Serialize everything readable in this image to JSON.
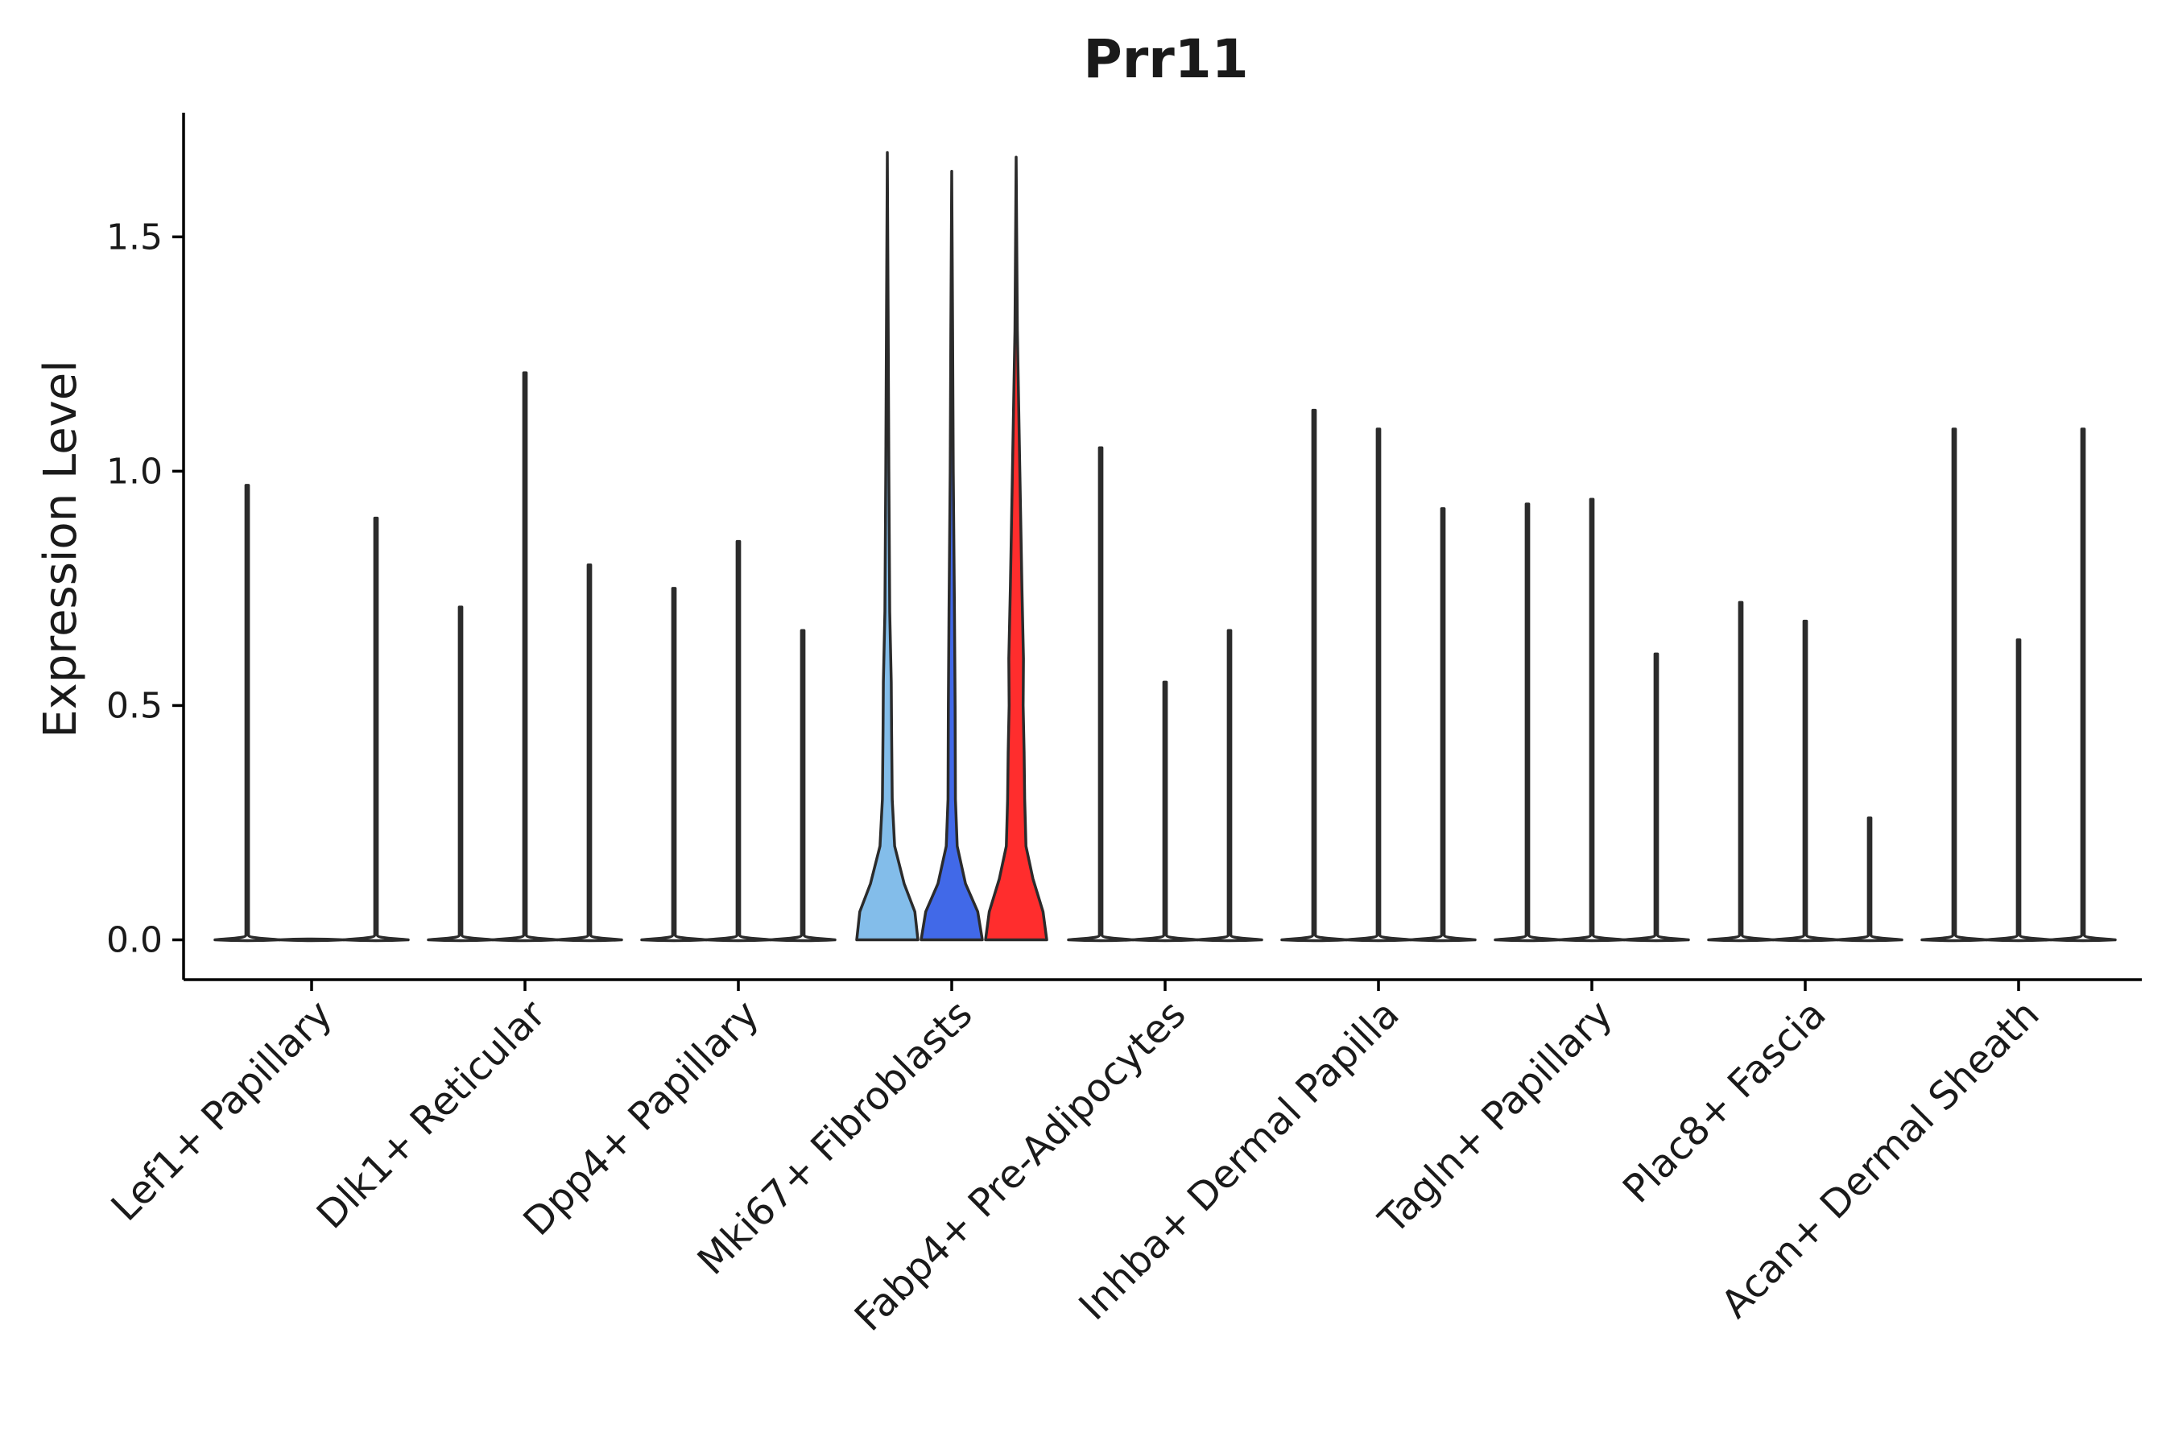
{
  "chart_data": {
    "type": "violin",
    "title": "Prr11",
    "xlabel": "",
    "ylabel": "Expression Level",
    "ylim": [
      -0.085,
      1.765
    ],
    "yticks": [
      0.0,
      0.5,
      1.0,
      1.5
    ],
    "ytick_labels": [
      "0.0",
      "0.5",
      "1.0",
      "1.5"
    ],
    "grid": false,
    "legend": "none",
    "categories": [
      "Lef1+ Papillary",
      "Dlk1+ Reticular",
      "Dpp4+ Papillary",
      "Mki67+ Fibroblasts",
      "Fabp4+ Pre-Adipocytes",
      "Inhba+ Dermal Papilla",
      "Tagln+ Papillary",
      "Plac8+ Fascia",
      "Acan+ Dermal Sheath"
    ],
    "groups_per_category": 3,
    "default_fill": "#ffffff",
    "series": [
      {
        "color": "#83BDEA",
        "max": [
          0.97,
          0.71,
          0.75,
          1.68,
          1.05,
          1.13,
          0.93,
          0.72,
          1.09
        ]
      },
      {
        "color": "#4169E8",
        "max": [
          0.0,
          1.21,
          0.85,
          1.64,
          0.55,
          1.09,
          0.94,
          0.68,
          0.64
        ]
      },
      {
        "color": "#FF2D2D",
        "max": [
          0.9,
          0.8,
          0.66,
          1.67,
          0.66,
          0.92,
          0.61,
          0.26,
          1.09
        ]
      }
    ],
    "highlight_category": "Mki67+ Fibroblasts"
  }
}
